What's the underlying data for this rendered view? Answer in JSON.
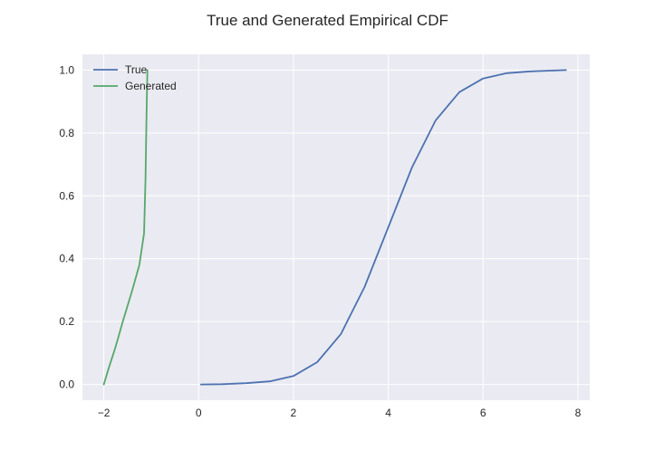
{
  "chart_data": {
    "type": "line",
    "title": "True and Generated Empirical CDF",
    "xlabel": "",
    "ylabel": "",
    "xlim": [
      -2.45,
      8.25
    ],
    "ylim": [
      -0.05,
      1.05
    ],
    "xticks": [
      -2,
      0,
      2,
      4,
      6,
      8
    ],
    "xtick_labels": [
      "−2",
      "0",
      "2",
      "4",
      "6",
      "8"
    ],
    "yticks": [
      0.0,
      0.2,
      0.4,
      0.6,
      0.8,
      1.0
    ],
    "ytick_labels": [
      "0.0",
      "0.2",
      "0.4",
      "0.6",
      "0.8",
      "1.0"
    ],
    "grid": true,
    "legend_position": "top-left",
    "background_color": "#eaeaf2",
    "series": [
      {
        "name": "True",
        "color": "#4c72b0",
        "x": [
          0.05,
          0.5,
          1.0,
          1.5,
          2.0,
          2.5,
          3.0,
          3.5,
          4.0,
          4.5,
          5.0,
          5.5,
          6.0,
          6.5,
          7.0,
          7.75
        ],
        "y": [
          0.0,
          0.001,
          0.004,
          0.01,
          0.027,
          0.071,
          0.16,
          0.31,
          0.5,
          0.69,
          0.84,
          0.93,
          0.973,
          0.99,
          0.996,
          1.0
        ]
      },
      {
        "name": "Generated",
        "color": "#55a868",
        "x": [
          -2.0,
          -1.9,
          -1.75,
          -1.6,
          -1.4,
          -1.25,
          -1.15,
          -1.12,
          -1.1,
          -1.08
        ],
        "y": [
          0.0,
          0.05,
          0.12,
          0.2,
          0.3,
          0.38,
          0.48,
          0.65,
          0.85,
          1.0
        ]
      }
    ]
  }
}
